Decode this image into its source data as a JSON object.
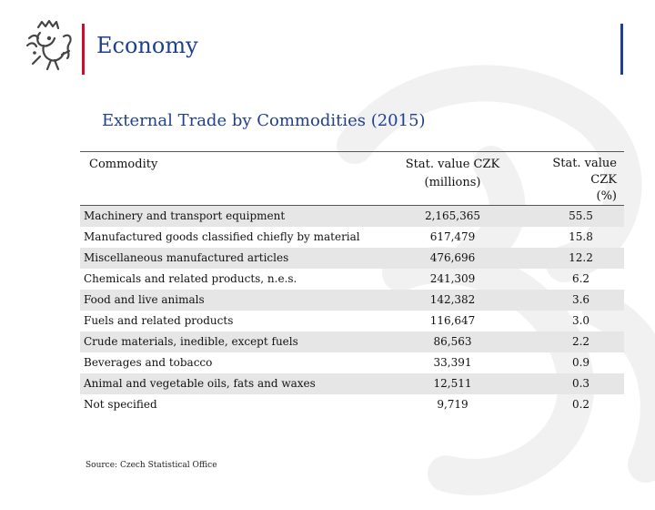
{
  "header": {
    "title": "Economy",
    "colors": {
      "accent_red": "#c8102e",
      "accent_blue": "#1f3f8f"
    }
  },
  "slide": {
    "subtitle": "External Trade by Commodities (2015)",
    "source": "Source: Czech Statistical Office"
  },
  "table": {
    "columns": {
      "commodity": "Commodity",
      "value_line1": "Stat. value CZK",
      "value_line2": "(millions)",
      "pct_line1": "Stat. value CZK",
      "pct_line2": "(%)"
    },
    "rows": [
      {
        "commodity": "Machinery and transport equipment",
        "value": "2,165,365",
        "pct": "55.5"
      },
      {
        "commodity": "Manufactured goods classified chiefly by material",
        "value": "617,479",
        "pct": "15.8"
      },
      {
        "commodity": "Miscellaneous manufactured articles",
        "value": "476,696",
        "pct": "12.2"
      },
      {
        "commodity": "Chemicals and related products, n.e.s.",
        "value": "241,309",
        "pct": "6.2"
      },
      {
        "commodity": "Food and live animals",
        "value": "142,382",
        "pct": "3.6"
      },
      {
        "commodity": "Fuels and related products",
        "value": "116,647",
        "pct": "3.0"
      },
      {
        "commodity": "Crude materials, inedible, except fuels",
        "value": "86,563",
        "pct": "2.2"
      },
      {
        "commodity": "Beverages and tobacco",
        "value": "33,391",
        "pct": "0.9"
      },
      {
        "commodity": "Animal and vegetable oils, fats and waxes",
        "value": "12,511",
        "pct": "0.3"
      },
      {
        "commodity": "Not specified",
        "value": "9,719",
        "pct": "0.2"
      }
    ]
  }
}
